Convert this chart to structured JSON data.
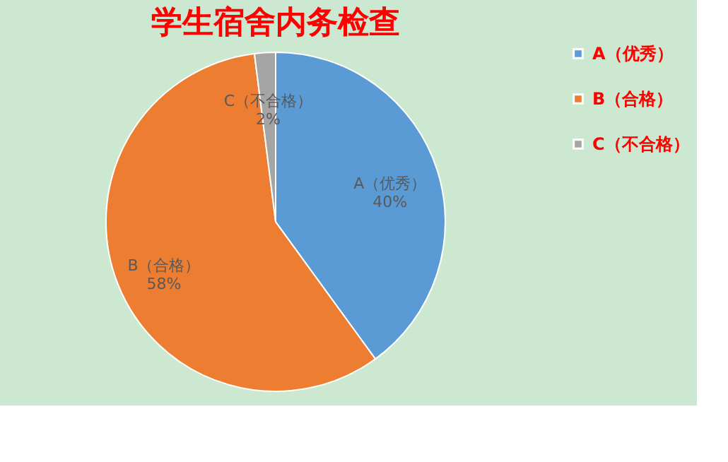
{
  "chart_data": {
    "type": "pie",
    "title": "学生宿舍内务检查",
    "categories": [
      "A（优秀）",
      "B（合格）",
      "C（不合格）"
    ],
    "values": [
      40,
      58,
      2
    ],
    "colors": [
      "#5b9bd5",
      "#ed7d31",
      "#a5a5a5"
    ],
    "value_labels": [
      "40%",
      "58%",
      "2%"
    ],
    "legend": "right"
  }
}
